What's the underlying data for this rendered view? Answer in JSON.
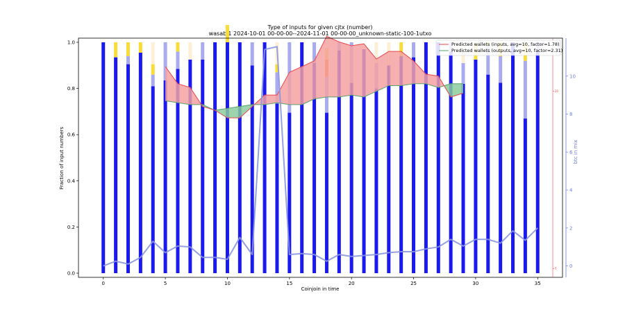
{
  "chart_data": {
    "type": "bar",
    "title": "Type of inputs for given cjtx (number)",
    "subtitle": "wasabi1 2024-10-01 00-00-00--2024-11-01 00-00-00_unknown-static-100-1utxo",
    "xlabel": "Coinjoin in time",
    "ylabel": "Fraction of input numbers",
    "y2label": "btc in mix",
    "xlim": [
      -2,
      37
    ],
    "ylim": [
      0,
      1.0
    ],
    "y2lim": [
      -0.6,
      12.0
    ],
    "y3lim": [
      -1,
      26
    ],
    "x_ticks": [
      "0",
      "5",
      "10",
      "15",
      "20",
      "25",
      "30",
      "35"
    ],
    "y_ticks": [
      "0.0",
      "0.2",
      "0.4",
      "0.6",
      "0.8",
      "1.0"
    ],
    "y2_ticks": [
      "0",
      "2",
      "4",
      "6",
      "8",
      "10"
    ],
    "y3_ticks": [
      "0",
      "20"
    ],
    "x": [
      0,
      1,
      2,
      3,
      4,
      5,
      6,
      7,
      8,
      9,
      10,
      11,
      12,
      13,
      14,
      15,
      16,
      17,
      18,
      19,
      20,
      21,
      22,
      23,
      24,
      25,
      26,
      27,
      28,
      29,
      30,
      31,
      32,
      33,
      34,
      35
    ],
    "stacked_series": [
      {
        "key": "blue",
        "color": "#1a1aee",
        "values": [
          1.0,
          0.935,
          0.905,
          0.955,
          0.81,
          0.835,
          0.885,
          0.925,
          0.925,
          1.0,
          1.0,
          1.0,
          0.9,
          1.0,
          0.735,
          0.695,
          1.0,
          0.91,
          0.695,
          0.965,
          0.825,
          0.97,
          0.8,
          0.9,
          0.94,
          0.935,
          1.0,
          1.0,
          0.96,
          0.82,
          0.925,
          0.86,
          0.825,
          1.0,
          0.67,
          0.96
        ]
      },
      {
        "key": "lightblue",
        "color": "#aaaaf0",
        "values": [
          0,
          0,
          0.035,
          0,
          0.05,
          0.165,
          0.075,
          0,
          0.075,
          0,
          0,
          0,
          0.1,
          0,
          0.135,
          0.305,
          0,
          0.09,
          0.155,
          0.035,
          0.175,
          0,
          0.11,
          0,
          0,
          0.065,
          0,
          0,
          0.04,
          0.09,
          0,
          0.125,
          0.115,
          0,
          0.25,
          0.04
        ]
      },
      {
        "key": "orange",
        "color": "#ff7a1a",
        "values": [
          0,
          0,
          0,
          0,
          0,
          0,
          0,
          0,
          0,
          0,
          0,
          0,
          0,
          0,
          0,
          0,
          0,
          0,
          0.075,
          0,
          0,
          0,
          0,
          0,
          0,
          0,
          0,
          0,
          0,
          0,
          0,
          0,
          0,
          0,
          0,
          0
        ]
      },
      {
        "key": "yellow",
        "color": "#f8dc3a",
        "values": [
          0,
          0.065,
          0.06,
          0.045,
          0.045,
          0,
          0.04,
          0,
          0,
          0,
          0.075,
          0,
          0,
          0,
          0.035,
          0,
          0,
          0,
          0.05,
          0,
          0,
          0,
          0,
          0,
          0.06,
          0,
          0,
          0,
          0,
          0,
          0.075,
          0.015,
          0.06,
          0,
          0.08,
          0
        ]
      },
      {
        "key": "cream",
        "color": "#fcefd6",
        "values": [
          0,
          0,
          0,
          0,
          0.095,
          0,
          0,
          0.075,
          0,
          0,
          0,
          0,
          0,
          0,
          0.095,
          0,
          0,
          0,
          0,
          0,
          0,
          0,
          0.09,
          0.1,
          0,
          0,
          0,
          0,
          0,
          0.09,
          0,
          0,
          0,
          0,
          0,
          0
        ]
      }
    ],
    "series": [
      {
        "name": "Predicted wallets (inputs, avg=10, factor=1.78)",
        "color": "#e8474a",
        "fill": "#f4a2a2",
        "x": [
          5,
          6,
          7,
          8,
          9,
          10,
          11,
          12,
          13,
          14,
          15,
          16,
          17,
          18,
          19,
          20,
          21,
          22,
          23,
          24,
          25,
          26,
          27,
          28,
          29
        ],
        "values": [
          10.5,
          9.6,
          9.4,
          8.4,
          8.2,
          7.8,
          7.8,
          8.4,
          9.0,
          9.0,
          10.2,
          10.5,
          10.8,
          12.1,
          11.8,
          11.6,
          11.7,
          10.9,
          11.3,
          11.3,
          10.8,
          10.1,
          10.0,
          8.9,
          9.1
        ]
      },
      {
        "name": "Predicted wallets (outputs, avg=10, factor=2.31)",
        "color": "#5aa36a",
        "fill": "#8ccc9c",
        "x": [
          5,
          6,
          7,
          8,
          9,
          10,
          11,
          12,
          13,
          14,
          15,
          16,
          17,
          18,
          19,
          20,
          21,
          22,
          23,
          24,
          25,
          26,
          27,
          28,
          29
        ],
        "values": [
          8.7,
          8.6,
          8.5,
          8.5,
          8.2,
          8.3,
          8.4,
          8.5,
          8.5,
          8.6,
          8.5,
          8.5,
          8.8,
          8.9,
          8.9,
          9.0,
          8.9,
          9.2,
          9.5,
          9.5,
          9.6,
          9.6,
          9.4,
          9.6,
          9.6
        ]
      },
      {
        "name": "btc in mix",
        "color": "#8a96e0",
        "x": [
          0,
          1,
          2,
          3,
          4,
          5,
          6,
          7,
          8,
          9,
          10,
          11,
          12,
          13,
          14,
          15,
          16,
          17,
          18,
          19,
          20,
          21,
          22,
          23,
          24,
          25,
          26,
          27,
          28,
          29,
          30,
          31,
          32,
          33,
          34,
          35
        ],
        "values": [
          0.0,
          0.25,
          0.1,
          0.45,
          1.3,
          0.7,
          1.05,
          1.0,
          0.45,
          0.45,
          0.35,
          1.5,
          0.6,
          11.4,
          11.55,
          0.6,
          0.65,
          0.6,
          0.25,
          0.6,
          0.5,
          0.55,
          0.6,
          0.7,
          0.75,
          0.75,
          0.9,
          1.0,
          1.4,
          1.05,
          1.4,
          1.4,
          1.2,
          1.85,
          1.35,
          2.0
        ]
      }
    ],
    "legend_position": "top-right",
    "grid": false
  }
}
